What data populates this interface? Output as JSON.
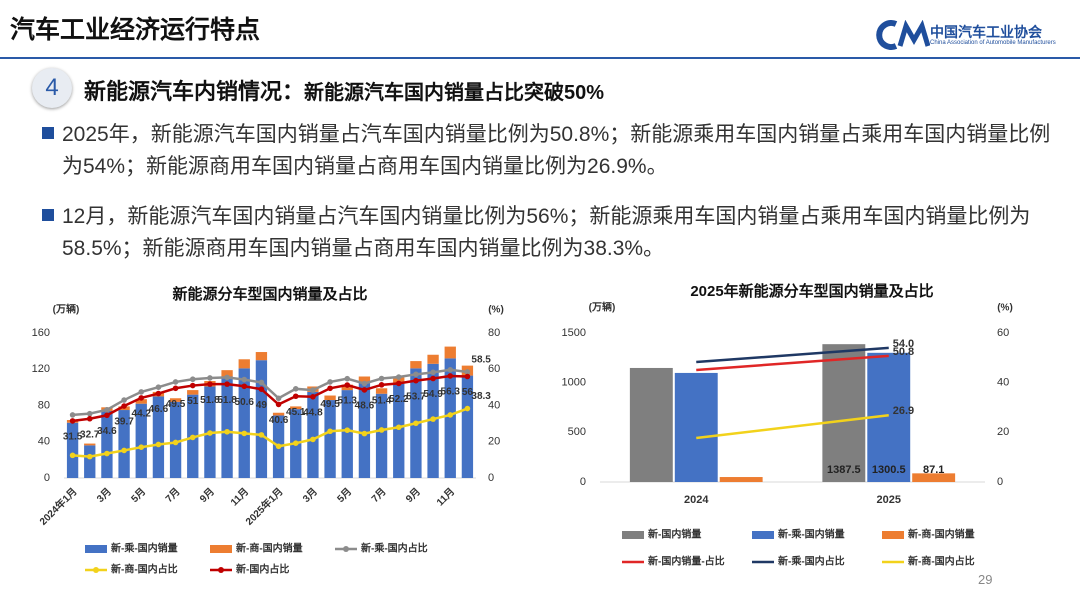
{
  "header": {
    "title": "汽车工业经济运行特点",
    "org_name": "中国汽车工业协会",
    "org_name_en": "China Association of Automobile Manufacturers"
  },
  "section": {
    "number": "4",
    "heading": "新能源汽车内销情况：",
    "subheading": "新能源汽车国内销量占比突破50%"
  },
  "bullets": [
    "2025年，新能源汽车国内销量占汽车国内销量比例为50.8%；新能源乘用车国内销量占乘用车国内销量比例为54%；新能源商用车国内销量占商用车国内销量比例为26.9%。",
    "12月，新能源汽车国内销量占汽车国内销量比例为56%；新能源乘用车国内销量占乘用车国内销量比例为58.5%；新能源商用车国内销量占商用车国内销量比例为38.3%。"
  ],
  "page_number": "29",
  "chart_data": [
    {
      "type": "combo",
      "title": "新能源分车型国内销量及占比",
      "y_label": "(万辆)",
      "y2_label": "(%)",
      "stacked": true,
      "categories": [
        "2024年1月",
        null,
        "3月",
        null,
        "5月",
        null,
        "7月",
        null,
        "9月",
        null,
        "11月",
        null,
        "2025年1月",
        null,
        "3月",
        null,
        "5月",
        null,
        "7月",
        null,
        "9月",
        null,
        "11月",
        null
      ],
      "ylim": [
        0,
        160
      ],
      "yticks": [
        0,
        40,
        80,
        120,
        160
      ],
      "y2lim": [
        0,
        80
      ],
      "y2ticks": [
        0,
        20,
        40,
        60,
        80
      ],
      "series": [
        {
          "name": "新-乘-国内销量",
          "kind": "bar",
          "color": "#4472c4",
          "values": [
            61,
            36,
            74,
            75,
            82,
            90,
            84,
            92,
            101,
            112,
            121,
            130,
            69,
            76,
            95,
            86,
            97,
            105,
            93,
            104,
            121,
            126,
            132,
            113
          ]
        },
        {
          "name": "新-商-国内销量",
          "kind": "bar",
          "color": "#ed7d31",
          "values": [
            3,
            2,
            4,
            4,
            5,
            5,
            4,
            5,
            6,
            7,
            10,
            9,
            3,
            3,
            6,
            5,
            6,
            7,
            6,
            7,
            8,
            10,
            13,
            11
          ]
        },
        {
          "name": "新-乘-国内占比",
          "kind": "line",
          "axis": "y2",
          "color": "#8c8c8c",
          "data_labels": "last",
          "values": [
            34.8,
            35.5,
            37.6,
            43,
            47.5,
            50.1,
            53,
            54.5,
            55.2,
            55.5,
            54.3,
            52.7,
            44,
            49.2,
            48.5,
            53,
            54.8,
            52.1,
            54.9,
            55.7,
            57.2,
            58.3,
            59.7,
            58.5
          ]
        },
        {
          "name": "新-商-国内占比",
          "kind": "line",
          "axis": "y2",
          "color": "#f2d21b",
          "data_labels": "last",
          "values": [
            12.5,
            11.8,
            13.5,
            15.2,
            17,
            18.5,
            19.6,
            22.4,
            24.8,
            25.5,
            24.6,
            23.8,
            17.5,
            19.2,
            21.3,
            25.8,
            26.4,
            24.5,
            26.5,
            28,
            30.2,
            32.5,
            34.8,
            38.3
          ]
        },
        {
          "name": "新-国内占比",
          "kind": "line",
          "axis": "y2",
          "color": "#c00000",
          "data_labels": "all",
          "values": [
            31.5,
            32.7,
            34.6,
            39.7,
            44.2,
            46.6,
            49.5,
            51,
            51.8,
            51.8,
            50.6,
            49,
            40.6,
            45.1,
            44.8,
            49.5,
            51.3,
            48.6,
            51.4,
            52.2,
            53.7,
            54.9,
            56.3,
            56
          ]
        }
      ]
    },
    {
      "type": "combo",
      "title": "2025年新能源分车型国内销量及占比",
      "y_label": "(万辆)",
      "y2_label": "(%)",
      "stacked": false,
      "categories": [
        "2024",
        "2025"
      ],
      "ylim": [
        0,
        1500
      ],
      "yticks": [
        0,
        500,
        1000,
        1500
      ],
      "y2lim": [
        0,
        60
      ],
      "y2ticks": [
        0,
        20,
        40,
        60
      ],
      "series": [
        {
          "name": "新-国内销量",
          "kind": "bar",
          "color": "#7f7f7f",
          "data_labels": "last",
          "values": [
            1148,
            1387.5
          ]
        },
        {
          "name": "新-乘-国内销量",
          "kind": "bar",
          "color": "#4472c4",
          "data_labels": "last",
          "values": [
            1098,
            1300.5
          ]
        },
        {
          "name": "新-商-国内销量",
          "kind": "bar",
          "color": "#ed7d31",
          "data_labels": "last",
          "values": [
            50,
            87.1
          ]
        },
        {
          "name": "新-国内销量-占比",
          "kind": "line",
          "axis": "y2",
          "color": "#e02626",
          "data_labels": "last",
          "values": [
            45.1,
            50.8
          ]
        },
        {
          "name": "新-乘-国内占比",
          "kind": "line",
          "axis": "y2",
          "color": "#1f3864",
          "data_labels": "last",
          "values": [
            48.3,
            54
          ],
          "value_labels": [
            null,
            "54.0"
          ]
        },
        {
          "name": "新-商-国内占比",
          "kind": "line",
          "axis": "y2",
          "color": "#f2d21b",
          "data_labels": "last",
          "values": [
            17.7,
            26.9
          ]
        }
      ]
    }
  ]
}
